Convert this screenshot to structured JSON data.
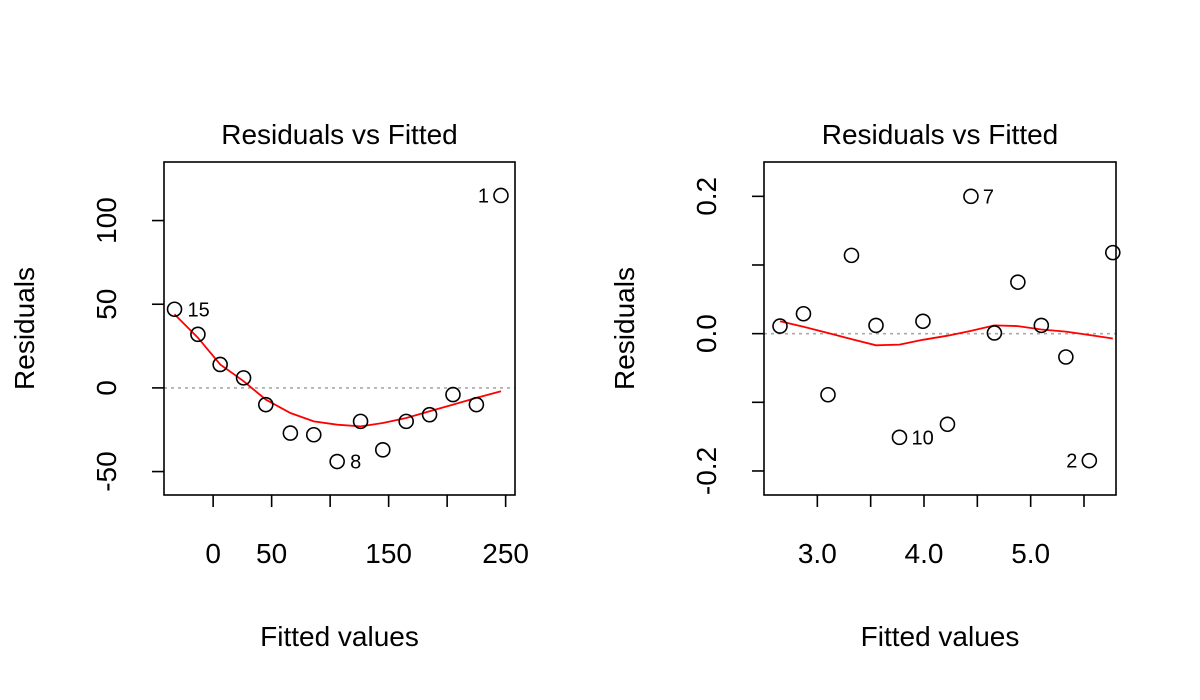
{
  "chart_data": [
    {
      "type": "scatter",
      "title": "Residuals vs Fitted",
      "xlabel": "Fitted values",
      "ylabel": "Residuals",
      "xlim": [
        -42,
        258
      ],
      "ylim": [
        -64,
        135
      ],
      "x_ticks": [
        0,
        50,
        100,
        150,
        200,
        250
      ],
      "x_tick_labels": [
        "0",
        "50",
        "",
        "150",
        "",
        "250"
      ],
      "y_ticks": [
        -50,
        0,
        50,
        100
      ],
      "y_tick_labels": [
        "-50",
        "0",
        "50",
        "100"
      ],
      "reference_line_y": 0,
      "points": [
        {
          "x": -33,
          "y": 47,
          "label": "15"
        },
        {
          "x": -13,
          "y": 32,
          "label": ""
        },
        {
          "x": 6,
          "y": 14,
          "label": ""
        },
        {
          "x": 26,
          "y": 6,
          "label": ""
        },
        {
          "x": 45,
          "y": -10,
          "label": ""
        },
        {
          "x": 66,
          "y": -27,
          "label": ""
        },
        {
          "x": 86,
          "y": -28,
          "label": ""
        },
        {
          "x": 106,
          "y": -44,
          "label": "8"
        },
        {
          "x": 126,
          "y": -20,
          "label": ""
        },
        {
          "x": 145,
          "y": -37,
          "label": ""
        },
        {
          "x": 165,
          "y": -20,
          "label": ""
        },
        {
          "x": 185,
          "y": -16,
          "label": ""
        },
        {
          "x": 205,
          "y": -4,
          "label": ""
        },
        {
          "x": 225,
          "y": -10,
          "label": ""
        },
        {
          "x": 246,
          "y": 115,
          "label": "1"
        }
      ],
      "smoother": [
        [
          -33,
          44
        ],
        [
          -13,
          30
        ],
        [
          6,
          14
        ],
        [
          26,
          4
        ],
        [
          45,
          -7
        ],
        [
          66,
          -15
        ],
        [
          86,
          -20
        ],
        [
          106,
          -22
        ],
        [
          126,
          -23
        ],
        [
          145,
          -21
        ],
        [
          165,
          -18
        ],
        [
          185,
          -14
        ],
        [
          205,
          -10
        ],
        [
          225,
          -6
        ],
        [
          246,
          -2
        ]
      ],
      "colors": {
        "points": "#000000",
        "smoother": "#ff0000",
        "reference": "#aaaaaa"
      }
    },
    {
      "type": "scatter",
      "title": "Residuals vs Fitted",
      "xlabel": "Fitted values",
      "ylabel": "Residuals",
      "xlim": [
        2.5,
        5.8
      ],
      "ylim": [
        -0.235,
        0.25
      ],
      "x_ticks": [
        3.0,
        3.5,
        4.0,
        4.5,
        5.0,
        5.5
      ],
      "x_tick_labels": [
        "3.0",
        "",
        "4.0",
        "",
        "5.0",
        ""
      ],
      "y_ticks": [
        -0.2,
        -0.1,
        0.0,
        0.1,
        0.2
      ],
      "y_tick_labels": [
        "-0.2",
        "",
        "0.0",
        "",
        "0.2"
      ],
      "reference_line_y": 0,
      "points": [
        {
          "x": 2.65,
          "y": 0.011,
          "label": ""
        },
        {
          "x": 2.87,
          "y": 0.029,
          "label": ""
        },
        {
          "x": 3.1,
          "y": -0.089,
          "label": ""
        },
        {
          "x": 3.32,
          "y": 0.114,
          "label": ""
        },
        {
          "x": 3.55,
          "y": 0.012,
          "label": ""
        },
        {
          "x": 3.77,
          "y": -0.151,
          "label": "10"
        },
        {
          "x": 3.99,
          "y": 0.018,
          "label": ""
        },
        {
          "x": 4.22,
          "y": -0.132,
          "label": ""
        },
        {
          "x": 4.44,
          "y": 0.2,
          "label": "7"
        },
        {
          "x": 4.66,
          "y": 0.001,
          "label": ""
        },
        {
          "x": 4.88,
          "y": 0.075,
          "label": ""
        },
        {
          "x": 5.1,
          "y": 0.012,
          "label": ""
        },
        {
          "x": 5.33,
          "y": -0.034,
          "label": ""
        },
        {
          "x": 5.55,
          "y": -0.185,
          "label": "2"
        },
        {
          "x": 5.77,
          "y": 0.118,
          "label": ""
        }
      ],
      "smoother": [
        [
          2.65,
          0.018
        ],
        [
          2.87,
          0.01
        ],
        [
          3.1,
          0.001
        ],
        [
          3.32,
          -0.008
        ],
        [
          3.55,
          -0.017
        ],
        [
          3.77,
          -0.016
        ],
        [
          3.99,
          -0.009
        ],
        [
          4.22,
          -0.003
        ],
        [
          4.44,
          0.004
        ],
        [
          4.66,
          0.012
        ],
        [
          4.88,
          0.011
        ],
        [
          5.1,
          0.006
        ],
        [
          5.33,
          0.003
        ],
        [
          5.55,
          -0.002
        ],
        [
          5.77,
          -0.007
        ]
      ],
      "colors": {
        "points": "#000000",
        "smoother": "#ff0000",
        "reference": "#aaaaaa"
      }
    }
  ]
}
